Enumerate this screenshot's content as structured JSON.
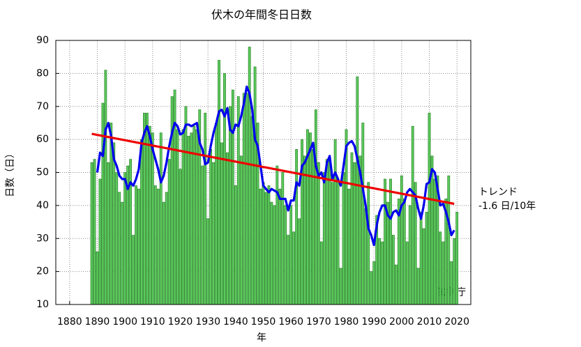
{
  "chart_data": {
    "type": "bar",
    "title": "伏木の年間冬日日数",
    "xlabel": "年",
    "ylabel": "日数（日）",
    "xlim": [
      1875,
      2025
    ],
    "ylim": [
      10,
      90
    ],
    "xticks": [
      1880,
      1890,
      1900,
      1910,
      1920,
      1930,
      1940,
      1950,
      1960,
      1970,
      1980,
      1990,
      2000,
      2010,
      2020
    ],
    "yticks": [
      10,
      20,
      30,
      40,
      50,
      60,
      70,
      80,
      90
    ],
    "grid": true,
    "annotations": [
      "-1.6 日/10年",
      "気象庁"
    ],
    "x": [
      1888,
      1889,
      1890,
      1891,
      1892,
      1893,
      1894,
      1895,
      1896,
      1897,
      1898,
      1899,
      1900,
      1901,
      1902,
      1903,
      1904,
      1905,
      1906,
      1907,
      1908,
      1909,
      1910,
      1911,
      1912,
      1913,
      1914,
      1915,
      1916,
      1917,
      1918,
      1919,
      1920,
      1921,
      1922,
      1923,
      1924,
      1925,
      1926,
      1927,
      1928,
      1929,
      1930,
      1931,
      1932,
      1933,
      1934,
      1935,
      1936,
      1937,
      1938,
      1939,
      1940,
      1941,
      1942,
      1943,
      1944,
      1945,
      1946,
      1947,
      1948,
      1949,
      1950,
      1951,
      1952,
      1953,
      1954,
      1955,
      1956,
      1957,
      1958,
      1959,
      1960,
      1961,
      1962,
      1963,
      1964,
      1965,
      1966,
      1967,
      1968,
      1969,
      1970,
      1971,
      1972,
      1973,
      1974,
      1975,
      1976,
      1977,
      1978,
      1979,
      1980,
      1981,
      1982,
      1983,
      1984,
      1985,
      1986,
      1987,
      1988,
      1989,
      1990,
      1991,
      1992,
      1993,
      1994,
      1995,
      1996,
      1997,
      1998,
      1999,
      2000,
      2001,
      2002,
      2003,
      2004,
      2005,
      2006,
      2007,
      2008,
      2009,
      2010,
      2011,
      2012,
      2013,
      2014,
      2015,
      2016,
      2017,
      2018,
      2019,
      2020
    ],
    "values": [
      53,
      54,
      26,
      48,
      71,
      81,
      53,
      65,
      59,
      50,
      44,
      41,
      50,
      52,
      54,
      31,
      46,
      45,
      60,
      68,
      68,
      64,
      62,
      46,
      45,
      62,
      41,
      44,
      54,
      73,
      75,
      63,
      51,
      63,
      70,
      61,
      62,
      64,
      63,
      69,
      52,
      68,
      36,
      57,
      53,
      65,
      84,
      59,
      80,
      56,
      70,
      75,
      46,
      73,
      55,
      74,
      74,
      88,
      67,
      82,
      65,
      45,
      47,
      44,
      46,
      41,
      40,
      52,
      45,
      50,
      40,
      31,
      40,
      32,
      57,
      36,
      60,
      55,
      63,
      62,
      57,
      69,
      53,
      29,
      50,
      54,
      54,
      47,
      60,
      48,
      21,
      50,
      63,
      45,
      56,
      53,
      79,
      55,
      65,
      39,
      47,
      20,
      23,
      37,
      30,
      29,
      48,
      41,
      48,
      31,
      22,
      42,
      49,
      42,
      29,
      40,
      64,
      47,
      21,
      38,
      33,
      38,
      68,
      55,
      48,
      49,
      32,
      29,
      42,
      49,
      23,
      30,
      38
    ],
    "color": "#5cc85c",
    "edgecolor": "#1f7a1f",
    "lines": [
      {
        "color": "#0000ee",
        "x": [
          1890,
          1891,
          1892,
          1893,
          1894,
          1895,
          1896,
          1897,
          1898,
          1899,
          1900,
          1901,
          1902,
          1903,
          1904,
          1905,
          1906,
          1907,
          1908,
          1909,
          1910,
          1911,
          1912,
          1913,
          1914,
          1915,
          1916,
          1917,
          1918,
          1919,
          1920,
          1921,
          1922,
          1923,
          1924,
          1925,
          1926,
          1927,
          1928,
          1929,
          1930,
          1931,
          1932,
          1933,
          1934,
          1935,
          1936,
          1937,
          1938,
          1939,
          1940,
          1941,
          1942,
          1943,
          1944,
          1945,
          1946,
          1947,
          1948,
          1949,
          1950,
          1951,
          1952,
          1953,
          1954,
          1955,
          1956,
          1957,
          1958,
          1959,
          1960,
          1961,
          1962,
          1963,
          1964,
          1965,
          1966,
          1967,
          1968,
          1969,
          1970,
          1971,
          1972,
          1973,
          1974,
          1975,
          1976,
          1977,
          1978,
          1979,
          1980,
          1981,
          1982,
          1983,
          1984,
          1985,
          1986,
          1987,
          1988,
          1989,
          1990,
          1991,
          1992,
          1993,
          1994,
          1995,
          1996,
          1997,
          1998,
          1999,
          2000,
          2001,
          2002,
          2003,
          2004,
          2005,
          2006,
          2007,
          2008,
          2009,
          2010,
          2011,
          2012,
          2013,
          2014,
          2015,
          2016,
          2017,
          2018,
          2019
        ],
        "values": [
          50,
          56,
          55,
          63,
          65,
          61,
          54,
          52,
          49,
          48,
          48,
          45,
          47,
          46,
          48,
          51,
          59,
          62,
          64,
          61,
          57,
          54,
          51,
          47,
          49,
          53,
          58,
          62,
          65,
          64,
          61.5,
          62,
          64.5,
          64.5,
          64,
          64.5,
          65,
          59,
          57,
          52.5,
          53,
          58,
          62,
          65,
          68.5,
          69,
          67,
          69.5,
          63,
          62,
          64.5,
          64,
          67,
          71,
          76,
          74,
          69,
          60,
          58,
          52,
          46,
          45,
          44,
          45,
          44.5,
          44,
          42,
          42,
          42,
          38.5,
          41.5,
          41.5,
          47,
          46,
          52,
          53,
          55,
          57,
          59,
          52,
          49,
          50,
          47,
          53,
          55,
          48,
          50,
          48,
          46,
          52,
          58,
          59,
          59.5,
          58,
          54,
          50,
          45,
          40,
          33,
          31,
          28,
          34,
          38,
          40,
          40,
          37,
          36,
          38,
          38.5,
          37,
          40,
          41,
          44,
          45,
          44,
          43,
          39,
          36,
          40,
          46.5,
          47,
          51,
          50,
          45,
          40,
          40.5,
          38,
          35,
          31,
          32.5
        ]
      },
      {
        "name": "トレンド",
        "color": "#ee0000",
        "x": [
          1888,
          2019
        ],
        "values": [
          61.7,
          40.5
        ]
      }
    ]
  }
}
